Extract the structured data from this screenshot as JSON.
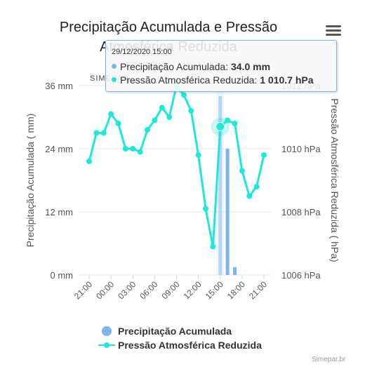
{
  "title_line1": "Precipitação Acumulada e Pressão",
  "title_line2": "Atmosférica Reduzida",
  "watermark": "SIMEPAR",
  "credits": "Simepar.br",
  "menu_icon": "hamburger-menu-icon",
  "tooltip": {
    "date": "29/12/2020 15:00",
    "precip_label": "Precipitação Acumulada: ",
    "precip_value": "34.0 mm",
    "press_label": "Pressão Atmosférica Reduzida: ",
    "press_value": "1 010.7 hPa"
  },
  "colors": {
    "precip": "#7cb5ec",
    "pressure": "#1de9d8",
    "grid": "#e6e6e6"
  },
  "chart_data": {
    "type": "bar+line",
    "x": [
      "21:00",
      "22:00",
      "23:00",
      "00:00",
      "01:00",
      "02:00",
      "03:00",
      "04:00",
      "05:00",
      "06:00",
      "07:00",
      "08:00",
      "09:00",
      "10:00",
      "11:00",
      "12:00",
      "13:00",
      "14:00",
      "15:00",
      "16:00",
      "17:00",
      "18:00",
      "19:00",
      "20:00",
      "21:00"
    ],
    "x_tick_labels": [
      "21:00",
      "00:00",
      "03:00",
      "06:00",
      "09:00",
      "12:00",
      "15:00",
      "18:00",
      "21:00"
    ],
    "series": [
      {
        "name": "Precipitação Acumulada",
        "type": "bar",
        "axis": "left",
        "values": [
          0,
          0,
          0,
          0,
          0,
          0,
          0,
          0,
          0,
          0,
          0,
          0,
          0,
          0,
          0,
          0,
          0,
          0,
          34.0,
          24.0,
          1.5,
          0,
          0,
          0,
          0
        ]
      },
      {
        "name": "Pressão Atmosférica Reduzida",
        "type": "line",
        "axis": "right",
        "values": [
          1009.6,
          1010.5,
          1010.5,
          1011.1,
          1010.8,
          1010.0,
          1010.0,
          1009.9,
          1010.6,
          1010.9,
          1011.3,
          1011.0,
          1012.0,
          1011.7,
          1011.2,
          1009.8,
          1008.1,
          1006.9,
          1010.7,
          1010.9,
          1010.8,
          1009.3,
          1008.5,
          1008.8,
          1009.8
        ]
      }
    ],
    "y_left": {
      "label": "Precipitação Acumulada ( mm)",
      "ticks": [
        "0 mm",
        "12 mm",
        "24 mm",
        "36 mm"
      ],
      "range": [
        0,
        36
      ]
    },
    "y_right": {
      "label": "Pressão Atmosférica Reduzida ( hPa)",
      "ticks": [
        "1006 hPa",
        "1008 hPa",
        "1010 hPa",
        "1012 hPa"
      ],
      "range": [
        1006,
        1012
      ]
    },
    "grid": true,
    "legend_position": "bottom-center",
    "highlight_index": 18
  }
}
